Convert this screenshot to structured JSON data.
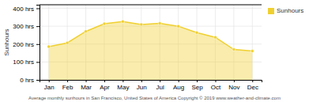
{
  "chart_data": {
    "type": "area",
    "title": "Average monthly sunhours in San Francisco, United States of America   Copyright © 2019 www.weather-and-climate.com",
    "ylabel": "Sunhours",
    "categories": [
      "Jan",
      "Feb",
      "Mar",
      "Apr",
      "May",
      "Jun",
      "Jul",
      "Aug",
      "Sep",
      "Oct",
      "Nov",
      "Dec"
    ],
    "series": [
      {
        "name": "Sunhours",
        "color": "#F0D030",
        "values": [
          186,
          207,
          271,
          314,
          326,
          310,
          316,
          300,
          264,
          238,
          170,
          161
        ]
      }
    ],
    "ylim": [
      0,
      420
    ],
    "yticks": [
      {
        "value": 0,
        "label": "0 hrs"
      },
      {
        "value": 100,
        "label": "100 hrs"
      },
      {
        "value": 200,
        "label": "200 hrs"
      },
      {
        "value": 300,
        "label": "300 hrs"
      },
      {
        "value": 400,
        "label": "400 hrs"
      }
    ],
    "grid": true,
    "legend": "right"
  }
}
